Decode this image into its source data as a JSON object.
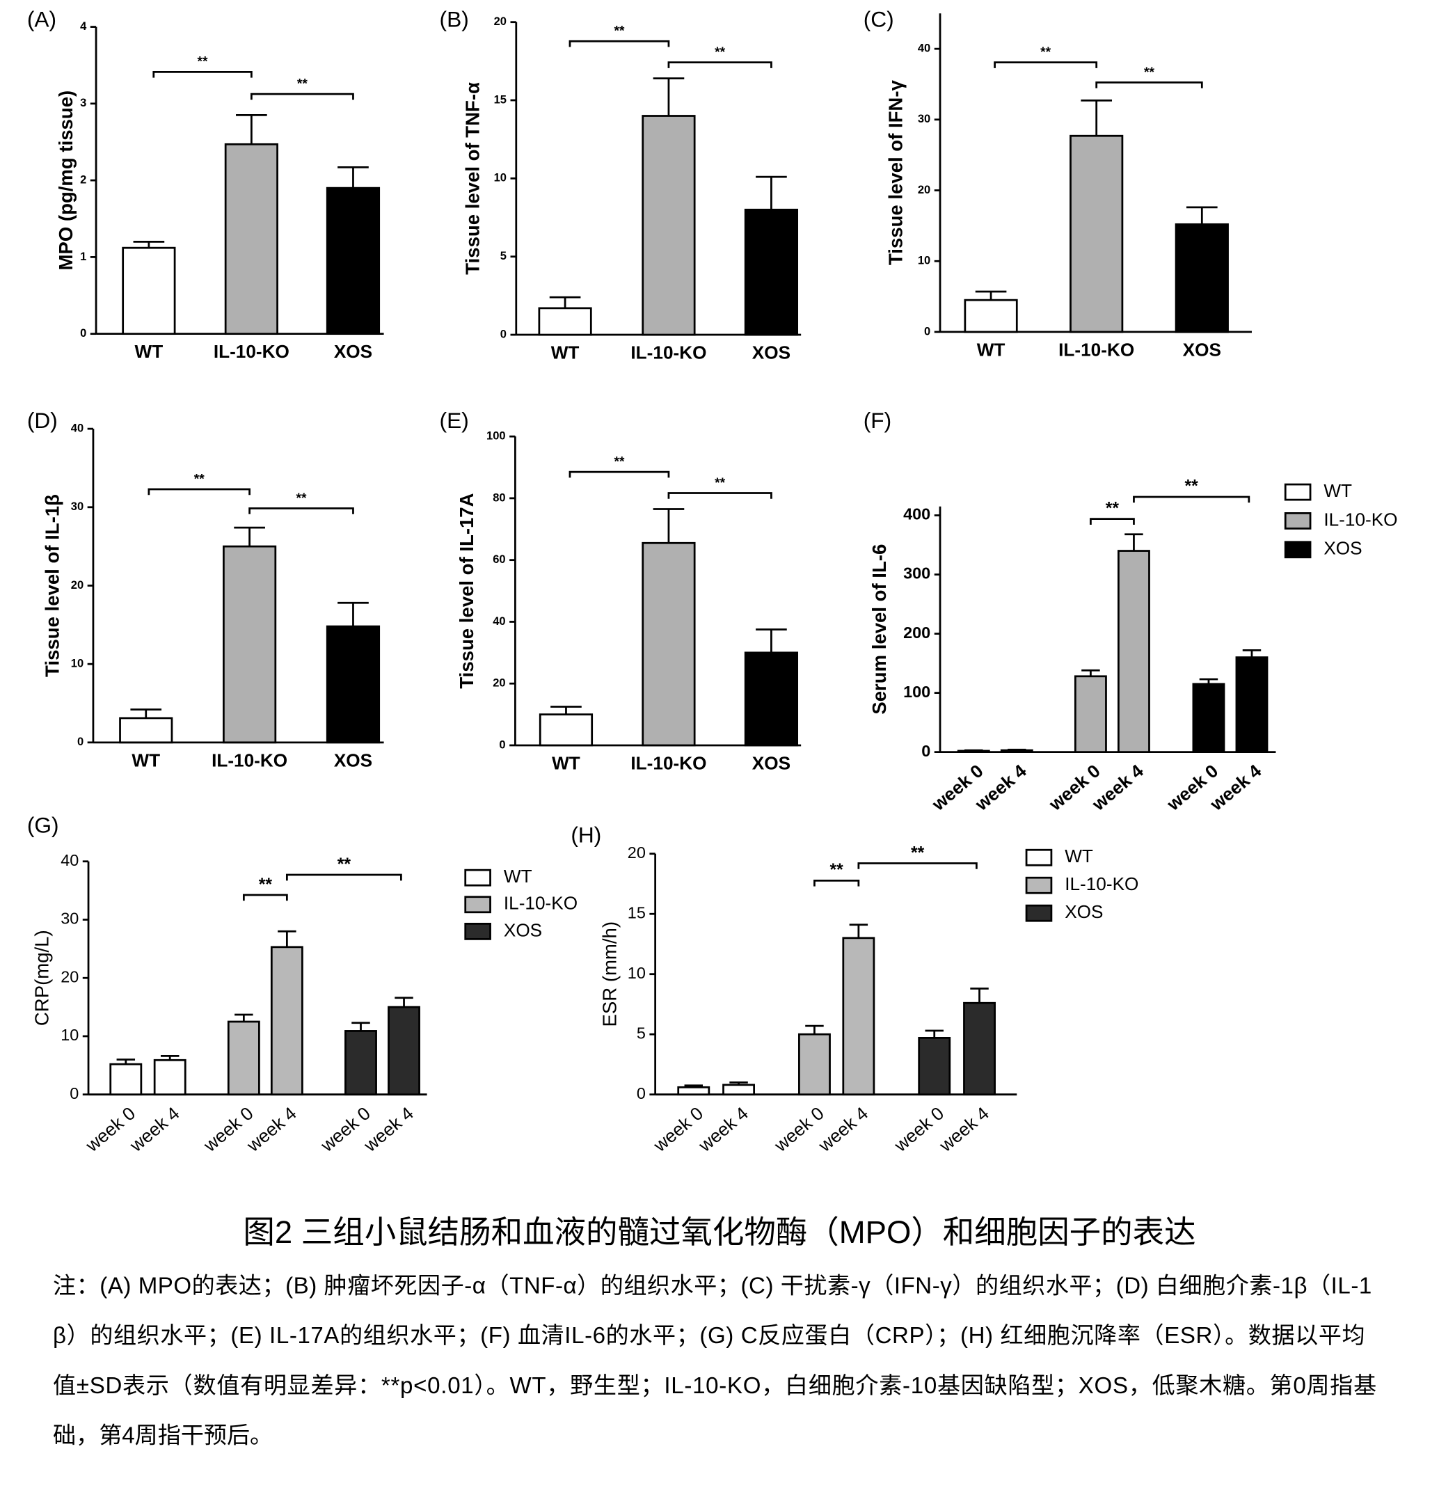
{
  "chart_data": [
    {
      "type": "bar",
      "panel_label": "(A)",
      "ylabel": "MPO (pg/mg tissue)",
      "categories": [
        "WT",
        "IL-10-KO",
        "XOS"
      ],
      "values": [
        1.12,
        2.47,
        1.9
      ],
      "errors": [
        0.08,
        0.38,
        0.27
      ],
      "colors": [
        "#ffffff",
        "#b0b0b0",
        "#000000"
      ],
      "ylim": [
        0,
        4
      ],
      "yticks": [
        0,
        1,
        2,
        3,
        4
      ],
      "annotations": [
        "**",
        "**"
      ]
    },
    {
      "type": "bar",
      "panel_label": "(B)",
      "ylabel": "Tissue level of TNF-α",
      "categories": [
        "WT",
        "IL-10-KO",
        "XOS"
      ],
      "values": [
        1.7,
        14,
        8
      ],
      "errors": [
        0.7,
        2.4,
        2.1
      ],
      "colors": [
        "#ffffff",
        "#b0b0b0",
        "#000000"
      ],
      "ylim": [
        0,
        20
      ],
      "yticks": [
        0,
        5,
        10,
        15,
        20
      ],
      "annotations": [
        "**",
        "**"
      ]
    },
    {
      "type": "bar",
      "panel_label": "(C)",
      "ylabel": "Tissue level of  IFN-γ",
      "categories": [
        "WT",
        "IL-10-KO",
        "XOS"
      ],
      "values": [
        4.5,
        27.7,
        15.2
      ],
      "errors": [
        1.2,
        5,
        2.4
      ],
      "colors": [
        "#ffffff",
        "#b0b0b0",
        "#000000"
      ],
      "ylim": [
        0,
        45
      ],
      "yticks": [
        0,
        10,
        20,
        30,
        40
      ],
      "annotations": [
        "**",
        "**"
      ]
    },
    {
      "type": "bar",
      "panel_label": "(D)",
      "ylabel": "Tissue level of  IL-1β",
      "categories": [
        "WT",
        "IL-10-KO",
        "XOS"
      ],
      "values": [
        3.1,
        25,
        14.8
      ],
      "errors": [
        1.1,
        2.4,
        3
      ],
      "colors": [
        "#ffffff",
        "#b0b0b0",
        "#000000"
      ],
      "ylim": [
        0,
        40
      ],
      "yticks": [
        0,
        10,
        20,
        30,
        40
      ],
      "annotations": [
        "**",
        "**"
      ]
    },
    {
      "type": "bar",
      "panel_label": "(E)",
      "ylabel": "Tissue level of IL-17A",
      "categories": [
        "WT",
        "IL-10-KO",
        "XOS"
      ],
      "values": [
        10,
        65.5,
        30
      ],
      "errors": [
        2.5,
        11,
        7.5
      ],
      "colors": [
        "#ffffff",
        "#b0b0b0",
        "#000000"
      ],
      "ylim": [
        0,
        100
      ],
      "yticks": [
        0,
        20,
        40,
        60,
        80,
        100
      ],
      "annotations": [
        "**",
        "**"
      ]
    },
    {
      "type": "grouped_bar",
      "panel_label": "(F)",
      "ylabel": "Serum level of IL-6",
      "categories": [
        "week 0",
        "week 4"
      ],
      "series": [
        {
          "name": "WT",
          "color": "#ffffff",
          "values": [
            2,
            3
          ],
          "errors": [
            1,
            1
          ]
        },
        {
          "name": "IL-10-KO",
          "color": "#b0b0b0",
          "values": [
            128,
            340
          ],
          "errors": [
            10,
            28
          ]
        },
        {
          "name": "XOS",
          "color": "#000000",
          "values": [
            115,
            160
          ],
          "errors": [
            8,
            12
          ]
        }
      ],
      "ylim": [
        0,
        415
      ],
      "yticks": [
        0,
        100,
        200,
        300,
        400
      ],
      "annotations": [
        "**",
        "**"
      ]
    },
    {
      "type": "grouped_bar",
      "panel_label": "(G)",
      "ylabel": "CRP(mg/L)",
      "categories": [
        "week 0",
        "week 4"
      ],
      "series": [
        {
          "name": "WT",
          "color": "#ffffff",
          "values": [
            5.2,
            5.9
          ],
          "errors": [
            0.8,
            0.7
          ]
        },
        {
          "name": "IL-10-KO",
          "color": "#b8b8b8",
          "values": [
            12.5,
            25.3
          ],
          "errors": [
            1.2,
            2.7
          ]
        },
        {
          "name": "XOS",
          "color": "#2b2b2b",
          "values": [
            10.9,
            15
          ],
          "errors": [
            1.4,
            1.6
          ]
        }
      ],
      "ylim": [
        0,
        40
      ],
      "yticks": [
        0,
        10,
        20,
        30,
        40
      ],
      "annotations": [
        "**",
        "**"
      ]
    },
    {
      "type": "grouped_bar",
      "panel_label": "(H)",
      "ylabel": "ESR (mm/h)",
      "categories": [
        "week 0",
        "week 4"
      ],
      "series": [
        {
          "name": "WT",
          "color": "#ffffff",
          "values": [
            0.6,
            0.8
          ],
          "errors": [
            0.15,
            0.2
          ]
        },
        {
          "name": "IL-10-KO",
          "color": "#b8b8b8",
          "values": [
            5,
            13
          ],
          "errors": [
            0.7,
            1.1
          ]
        },
        {
          "name": "XOS",
          "color": "#2b2b2b",
          "values": [
            4.7,
            7.6
          ],
          "errors": [
            0.6,
            1.2
          ]
        }
      ],
      "ylim": [
        0,
        20
      ],
      "yticks": [
        0,
        5,
        10,
        15,
        20
      ],
      "annotations": [
        "**",
        "**"
      ]
    }
  ],
  "caption": {
    "title": "图2 三组小鼠结肠和血液的髓过氧化物酶（MPO）和细胞因子的表达",
    "lines": [
      "注：(A) MPO的表达；(B) 肿瘤坏死因子-α（TNF-α）的组织水平；(C) 干扰素-γ（IFN-γ）的组织水平；(D) 白细胞介素-1β（IL-1",
      "β）的组织水平；(E) IL-17A的组织水平；(F) 血清IL-6的水平；(G) C反应蛋白（CRP）；(H) 红细胞沉降率（ESR）。数据以平均",
      "值±SD表示（数值有明显差异：**p<0.01）。WT，野生型；IL-10-KO，白细胞介素-10基因缺陷型；XOS，低聚木糖。第0周指基",
      "础，第4周指干预后。"
    ]
  }
}
